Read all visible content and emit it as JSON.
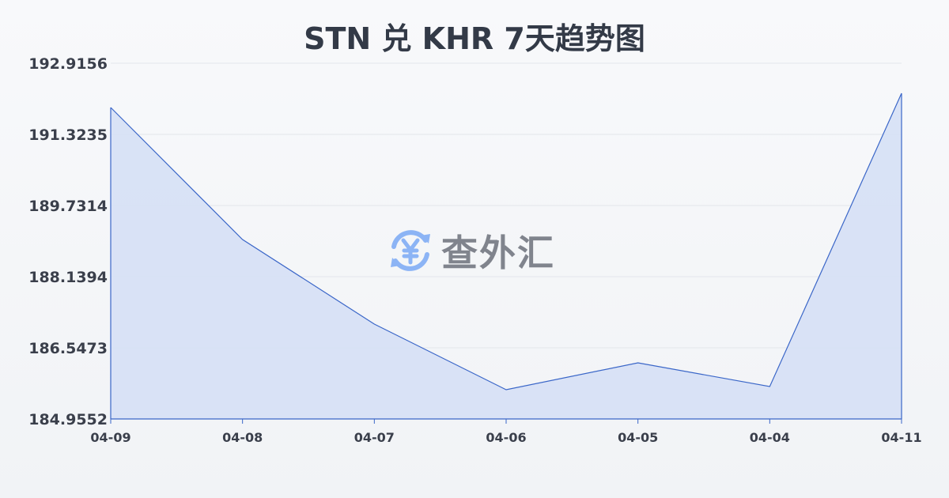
{
  "chart_data": {
    "type": "area",
    "title": "STN 兑 KHR 7天趋势图",
    "categories": [
      "04-09",
      "04-08",
      "04-07",
      "04-06",
      "04-05",
      "04-04",
      "04-11"
    ],
    "values": [
      191.925,
      188.971,
      187.078,
      185.61,
      186.211,
      185.681,
      192.243
    ],
    "yticks": [
      "184.9552",
      "186.5473",
      "188.1394",
      "189.7314",
      "191.3235",
      "192.9156"
    ],
    "ylim": [
      184.9552,
      192.9156
    ],
    "grid": true,
    "colors": {
      "line": "#3a66c8",
      "fill": "#d6e0f5"
    }
  },
  "watermark": {
    "text": "查外汇",
    "icon": "yen-exchange-icon",
    "icon_color": "#8cb4f5"
  }
}
